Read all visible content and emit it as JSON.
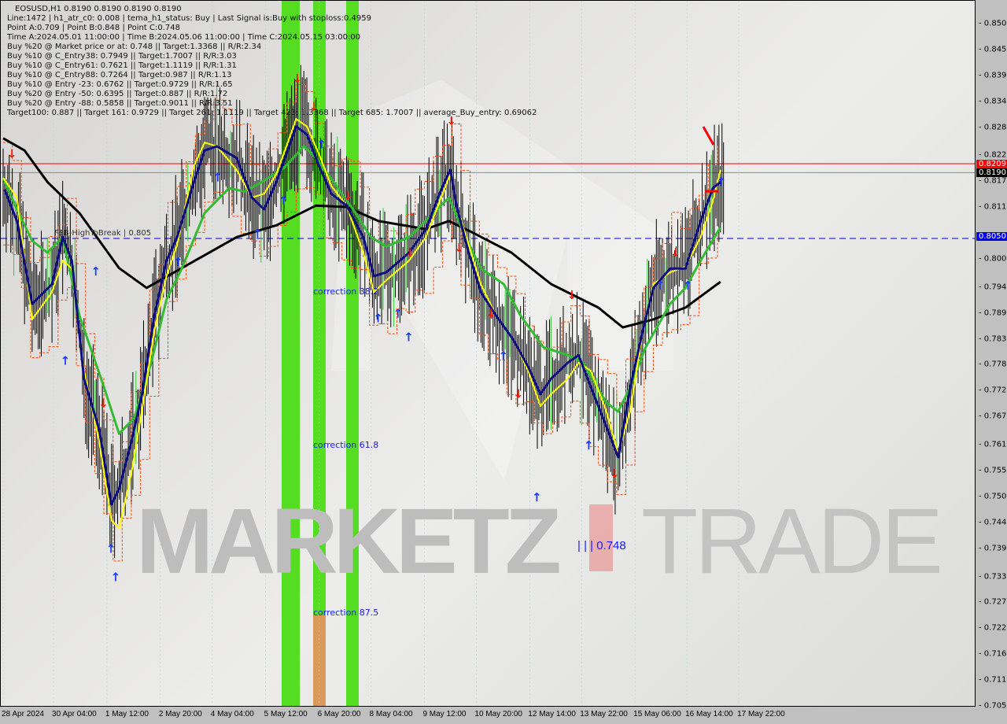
{
  "header": {
    "symbol_line": "EOSUSD,H1  0.8190 0.8190 0.8190 0.8190",
    "info_lines": [
      "Line:1472 | h1_atr_c0: 0.008 | tema_h1_status: Buy | Last Signal is:Buy with stoploss:0.4959",
      "Point A:0.709 | Point B:0.848 | Point C:0.748",
      "Time A:2024.05.01 11:00:00 | Time B:2024.05.06 11:00:00 | Time C:2024.05.15 03:00:00",
      "Buy %20 @ Market price or at: 0.748 || Target:1.3368 || R/R:2.34",
      "Buy %10 @ C_Entry38: 0.7949 || Target:1.7007 || R/R:3.03",
      "Buy %10 @ C_Entry61: 0.7621 || Target:1.1119 || R/R:1.31",
      "Buy %10 @ C_Entry88: 0.7264 || Target:0.987 || R/R:1.13",
      "Buy %10 @ Entry -23: 0.6762 || Target:0.9729 || R/R:1.65",
      "Buy %20 @ Entry -50: 0.6395 || Target:0.887 || R/R:1.72",
      "Buy %20 @ Entry -88: 0.5858 || Target:0.9011 || R/R:3.51",
      "Target100: 0.887 || Target 161: 0.9729 || Target 261: 1.1119 || Target 423: 1.3368 || Target 685: 1.7007 || average_Buy_entry: 0.69062"
    ]
  },
  "annotations": {
    "fsb": "FSB-HighToBreak | 0.805",
    "corr38": "correction 38.2",
    "corr61": "correction 61.8",
    "corr87": "correction 87.5",
    "point_c": "| | | 0.748"
  },
  "watermark": {
    "left": "MARKETZ",
    "right": "TRADE"
  },
  "price_tags": {
    "red": "0.8209",
    "black": "0.8190",
    "blue": "0.8050"
  },
  "colors": {
    "ma_fast": "#0d0d80",
    "ma_yellow": "#ffff00",
    "ma_green": "#33bb33",
    "ma_slow": "#000000",
    "band": "#55dd22",
    "band_orange": "#d99a5a",
    "buy_arrow": "#1a3cff",
    "sell_arrow": "#ff1a00",
    "level_red": "#ff0000",
    "level_gray": "#7a8ea0",
    "level_blue": "#0000dd"
  },
  "chart_data": {
    "type": "line",
    "title": "EOSUSD,H1",
    "x_unit": "bar index (H1)",
    "xtick_labels": [
      "28 Apr 2024",
      "30 Apr 04:00",
      "1 May 12:00",
      "2 May 20:00",
      "4 May 04:00",
      "5 May 12:00",
      "6 May 20:00",
      "8 May 04:00",
      "9 May 12:00",
      "10 May 20:00",
      "12 May 14:00",
      "13 May 22:00",
      "15 May 06:00",
      "16 May 14:00",
      "17 May 22:00"
    ],
    "xtick_bars": [
      0,
      33,
      68,
      103,
      137,
      172,
      207,
      241,
      276,
      310,
      345,
      379,
      414,
      448,
      482
    ],
    "ytick_labels": [
      "0.8505",
      "0.8450",
      "0.8395",
      "0.8340",
      "0.8285",
      "0.8225",
      "0.8170",
      "0.8115",
      "0.8005",
      "0.7945",
      "0.7890",
      "0.7835",
      "0.7780",
      "0.7725",
      "0.7670",
      "0.7610",
      "0.7555",
      "0.7500",
      "0.7445",
      "0.7390",
      "0.7330",
      "0.7275",
      "0.7220",
      "0.7165",
      "0.7110",
      "0.7055"
    ],
    "ylim": [
      0.7035,
      0.8555
    ],
    "levels": {
      "red": 0.8209,
      "gray": 0.819,
      "blue_dashed": 0.805
    },
    "series": [
      {
        "key": "navy",
        "points": [
          [
            1,
            0.8154
          ],
          [
            9,
            0.8087
          ],
          [
            19,
            0.7911
          ],
          [
            32,
            0.7953
          ],
          [
            39,
            0.8053
          ],
          [
            45,
            0.8003
          ],
          [
            53,
            0.7752
          ],
          [
            63,
            0.7643
          ],
          [
            71,
            0.7485
          ],
          [
            76,
            0.7518
          ],
          [
            84,
            0.7618
          ],
          [
            91,
            0.7719
          ],
          [
            99,
            0.7886
          ],
          [
            107,
            0.8003
          ],
          [
            114,
            0.8053
          ],
          [
            125,
            0.817
          ],
          [
            132,
            0.8237
          ],
          [
            140,
            0.8246
          ],
          [
            153,
            0.8221
          ],
          [
            163,
            0.8137
          ],
          [
            171,
            0.8112
          ],
          [
            179,
            0.817
          ],
          [
            192,
            0.8288
          ],
          [
            199,
            0.8271
          ],
          [
            207,
            0.8204
          ],
          [
            215,
            0.8145
          ],
          [
            225,
            0.812
          ],
          [
            236,
            0.8053
          ],
          [
            243,
            0.797
          ],
          [
            251,
            0.7978
          ],
          [
            266,
            0.802
          ],
          [
            277,
            0.807
          ],
          [
            287,
            0.8154
          ],
          [
            293,
            0.8196
          ],
          [
            297,
            0.812
          ],
          [
            305,
            0.802
          ],
          [
            313,
            0.7936
          ],
          [
            323,
            0.7886
          ],
          [
            334,
            0.7836
          ],
          [
            344,
            0.7777
          ],
          [
            352,
            0.7719
          ],
          [
            359,
            0.7752
          ],
          [
            370,
            0.7786
          ],
          [
            377,
            0.7802
          ],
          [
            385,
            0.7735
          ],
          [
            395,
            0.7652
          ],
          [
            403,
            0.7585
          ],
          [
            411,
            0.7735
          ],
          [
            419,
            0.7853
          ],
          [
            426,
            0.7945
          ],
          [
            437,
            0.7986
          ],
          [
            447,
            0.7986
          ],
          [
            457,
            0.8087
          ],
          [
            465,
            0.8157
          ],
          [
            470,
            0.817
          ]
        ]
      },
      {
        "key": "yellow",
        "points": [
          [
            0,
            0.8179
          ],
          [
            9,
            0.8137
          ],
          [
            19,
            0.7878
          ],
          [
            32,
            0.7936
          ],
          [
            39,
            0.8003
          ],
          [
            45,
            0.7986
          ],
          [
            53,
            0.7769
          ],
          [
            63,
            0.7618
          ],
          [
            71,
            0.7451
          ],
          [
            76,
            0.7434
          ],
          [
            84,
            0.7551
          ],
          [
            91,
            0.7685
          ],
          [
            99,
            0.7853
          ],
          [
            107,
            0.797
          ],
          [
            114,
            0.8037
          ],
          [
            125,
            0.8204
          ],
          [
            132,
            0.8254
          ],
          [
            140,
            0.8246
          ],
          [
            153,
            0.8196
          ],
          [
            163,
            0.8137
          ],
          [
            171,
            0.8145
          ],
          [
            179,
            0.8187
          ],
          [
            192,
            0.8304
          ],
          [
            199,
            0.8288
          ],
          [
            207,
            0.8229
          ],
          [
            215,
            0.8162
          ],
          [
            225,
            0.812
          ],
          [
            236,
            0.802
          ],
          [
            243,
            0.7936
          ],
          [
            251,
            0.7961
          ],
          [
            266,
            0.8003
          ],
          [
            277,
            0.8053
          ],
          [
            287,
            0.8137
          ],
          [
            293,
            0.8187
          ],
          [
            297,
            0.812
          ],
          [
            305,
            0.8037
          ],
          [
            313,
            0.7953
          ],
          [
            323,
            0.7886
          ],
          [
            334,
            0.7836
          ],
          [
            344,
            0.7769
          ],
          [
            352,
            0.7694
          ],
          [
            359,
            0.7719
          ],
          [
            370,
            0.7752
          ],
          [
            377,
            0.7786
          ],
          [
            385,
            0.7769
          ],
          [
            395,
            0.7685
          ],
          [
            403,
            0.7593
          ],
          [
            411,
            0.7685
          ],
          [
            419,
            0.7853
          ],
          [
            426,
            0.7953
          ],
          [
            437,
            0.7978
          ],
          [
            447,
            0.799
          ],
          [
            457,
            0.8053
          ],
          [
            465,
            0.8129
          ],
          [
            470,
            0.8196
          ]
        ]
      },
      {
        "key": "green",
        "points": [
          [
            0,
            0.8179
          ],
          [
            9,
            0.8112
          ],
          [
            19,
            0.8045
          ],
          [
            29,
            0.802
          ],
          [
            39,
            0.8053
          ],
          [
            50,
            0.7886
          ],
          [
            66,
            0.7735
          ],
          [
            76,
            0.7635
          ],
          [
            86,
            0.7669
          ],
          [
            97,
            0.7786
          ],
          [
            107,
            0.792
          ],
          [
            117,
            0.7986
          ],
          [
            132,
            0.8104
          ],
          [
            148,
            0.8157
          ],
          [
            158,
            0.815
          ],
          [
            168,
            0.8167
          ],
          [
            184,
            0.82
          ],
          [
            197,
            0.8246
          ],
          [
            205,
            0.8221
          ],
          [
            220,
            0.8154
          ],
          [
            231,
            0.8104
          ],
          [
            241,
            0.8053
          ],
          [
            251,
            0.8033
          ],
          [
            266,
            0.8053
          ],
          [
            282,
            0.8104
          ],
          [
            292,
            0.8137
          ],
          [
            303,
            0.8053
          ],
          [
            313,
            0.7986
          ],
          [
            328,
            0.7953
          ],
          [
            339,
            0.7886
          ],
          [
            354,
            0.7819
          ],
          [
            370,
            0.7802
          ],
          [
            380,
            0.7786
          ],
          [
            395,
            0.7702
          ],
          [
            403,
            0.7682
          ],
          [
            411,
            0.7735
          ],
          [
            421,
            0.7819
          ],
          [
            437,
            0.7911
          ],
          [
            447,
            0.7945
          ],
          [
            457,
            0.8003
          ],
          [
            470,
            0.8074
          ]
        ]
      },
      {
        "key": "black",
        "points": [
          [
            0,
            0.8263
          ],
          [
            14,
            0.8237
          ],
          [
            29,
            0.817
          ],
          [
            50,
            0.8104
          ],
          [
            76,
            0.7987
          ],
          [
            94,
            0.7945
          ],
          [
            117,
            0.7987
          ],
          [
            153,
            0.8053
          ],
          [
            179,
            0.8078
          ],
          [
            205,
            0.812
          ],
          [
            225,
            0.8117
          ],
          [
            246,
            0.8087
          ],
          [
            277,
            0.807
          ],
          [
            292,
            0.8087
          ],
          [
            308,
            0.8062
          ],
          [
            333,
            0.802
          ],
          [
            359,
            0.7953
          ],
          [
            390,
            0.7903
          ],
          [
            406,
            0.7861
          ],
          [
            426,
            0.7878
          ],
          [
            447,
            0.7903
          ],
          [
            470,
            0.7958
          ]
        ]
      }
    ],
    "signals": [
      [
        5,
        0.823,
        "sell"
      ],
      [
        40,
        0.779,
        "buy"
      ],
      [
        60,
        0.798,
        "buy"
      ],
      [
        65,
        0.77,
        "sell"
      ],
      [
        70,
        0.739,
        "buy"
      ],
      [
        73,
        0.733,
        "buy"
      ],
      [
        114,
        0.8,
        "buy"
      ],
      [
        140,
        0.818,
        "buy"
      ],
      [
        166,
        0.806,
        "buy"
      ],
      [
        183,
        0.813,
        "buy"
      ],
      [
        192,
        0.839,
        "sell"
      ],
      [
        203,
        0.833,
        "sell"
      ],
      [
        208,
        0.825,
        "buy"
      ],
      [
        225,
        0.814,
        "sell"
      ],
      [
        245,
        0.788,
        "buy"
      ],
      [
        258,
        0.789,
        "buy"
      ],
      [
        265,
        0.784,
        "buy"
      ],
      [
        266,
        0.802,
        "sell"
      ],
      [
        293,
        0.83,
        "sell"
      ],
      [
        298,
        0.803,
        "sell"
      ],
      [
        319,
        0.789,
        "sell"
      ],
      [
        327,
        0.78,
        "buy"
      ],
      [
        337,
        0.772,
        "sell"
      ],
      [
        349,
        0.75,
        "buy"
      ],
      [
        372,
        0.793,
        "sell"
      ],
      [
        383,
        0.761,
        "buy"
      ],
      [
        400,
        0.755,
        "sell"
      ],
      [
        430,
        0.795,
        "buy"
      ],
      [
        440,
        0.802,
        "sell"
      ],
      [
        448,
        0.795,
        "buy"
      ],
      [
        470,
        0.817,
        "buy"
      ]
    ]
  }
}
